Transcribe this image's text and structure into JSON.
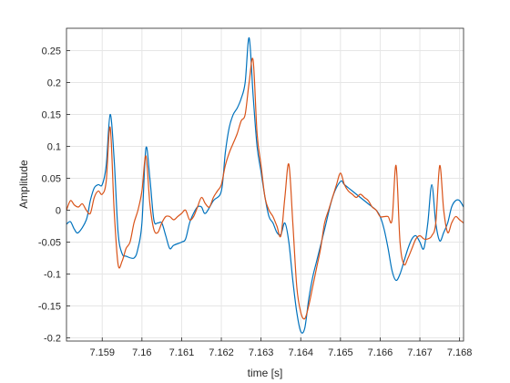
{
  "chart_data": {
    "type": "line",
    "title": "",
    "xlabel": "time [s]",
    "ylabel": "Amplitude",
    "xlim": [
      7.1581,
      7.1681
    ],
    "ylim": [
      -0.205,
      0.285
    ],
    "xticks": [
      7.159,
      7.16,
      7.161,
      7.162,
      7.163,
      7.164,
      7.165,
      7.166,
      7.167,
      7.168
    ],
    "xtick_labels": [
      "7.159",
      "7.16",
      "7.161",
      "7.162",
      "7.163",
      "7.164",
      "7.165",
      "7.166",
      "7.167",
      "7.168"
    ],
    "yticks": [
      -0.2,
      -0.15,
      -0.1,
      -0.05,
      0,
      0.05,
      0.1,
      0.15,
      0.2,
      0.25
    ],
    "ytick_labels": [
      "-0.2",
      "-0.15",
      "-0.1",
      "-0.05",
      "0",
      "0.05",
      "0.1",
      "0.15",
      "0.2",
      "0.25"
    ],
    "grid": true,
    "legend": "none",
    "series": [
      {
        "color": "#0072BD",
        "x": [
          7.1581,
          7.1582,
          7.1583,
          7.1584,
          7.1586,
          7.1587,
          7.1588,
          7.1589,
          7.159,
          7.1591,
          7.1592,
          7.1593,
          7.1594,
          7.1595,
          7.1596,
          7.1598,
          7.1599,
          7.16,
          7.1601,
          7.1602,
          7.1603,
          7.1604,
          7.1605,
          7.1606,
          7.1607,
          7.1608,
          7.161,
          7.1611,
          7.1612,
          7.1613,
          7.1614,
          7.1615,
          7.1616,
          7.1618,
          7.162,
          7.1621,
          7.1622,
          7.1623,
          7.1624,
          7.1625,
          7.1626,
          7.1627,
          7.1628,
          7.1629,
          7.163,
          7.1631,
          7.1632,
          7.1633,
          7.1634,
          7.1635,
          7.1636,
          7.1637,
          7.1638,
          7.1639,
          7.164,
          7.1641,
          7.1642,
          7.1643,
          7.1644,
          7.1646,
          7.1648,
          7.165,
          7.1651,
          7.1653,
          7.1655,
          7.1657,
          7.1659,
          7.166,
          7.1661,
          7.1662,
          7.1663,
          7.1664,
          7.1665,
          7.1666,
          7.1667,
          7.1668,
          7.1669,
          7.167,
          7.1671,
          7.1672,
          7.1673,
          7.1674,
          7.1675,
          7.1676,
          7.1677,
          7.1678,
          7.1679,
          7.168,
          7.1681
        ],
        "y": [
          -0.022,
          -0.018,
          -0.03,
          -0.035,
          -0.015,
          0.015,
          0.035,
          0.04,
          0.04,
          0.07,
          0.15,
          0.08,
          -0.035,
          -0.068,
          -0.072,
          -0.075,
          -0.06,
          -0.02,
          0.097,
          0.05,
          -0.015,
          -0.02,
          -0.02,
          -0.04,
          -0.06,
          -0.055,
          -0.05,
          -0.045,
          -0.02,
          -0.005,
          0.005,
          0.005,
          -0.005,
          0.015,
          0.03,
          0.09,
          0.13,
          0.15,
          0.16,
          0.175,
          0.2,
          0.27,
          0.18,
          0.1,
          0.06,
          0.02,
          -0.01,
          -0.02,
          -0.035,
          -0.038,
          -0.02,
          -0.05,
          -0.11,
          -0.16,
          -0.19,
          -0.185,
          -0.14,
          -0.105,
          -0.08,
          -0.03,
          0.02,
          0.045,
          0.04,
          0.03,
          0.02,
          0.01,
          0.0,
          -0.01,
          -0.03,
          -0.06,
          -0.095,
          -0.11,
          -0.1,
          -0.08,
          -0.06,
          -0.045,
          -0.04,
          -0.05,
          -0.06,
          -0.02,
          0.04,
          -0.02,
          -0.048,
          -0.035,
          -0.02,
          0.005,
          0.015,
          0.015,
          0.005
        ]
      },
      {
        "color": "#D95319",
        "x": [
          7.1581,
          7.1582,
          7.1583,
          7.1584,
          7.1585,
          7.1586,
          7.1587,
          7.1588,
          7.1589,
          7.159,
          7.1591,
          7.1592,
          7.1593,
          7.1594,
          7.1595,
          7.1596,
          7.1597,
          7.1598,
          7.1599,
          7.16,
          7.1601,
          7.1602,
          7.1603,
          7.1604,
          7.1605,
          7.1606,
          7.1607,
          7.1608,
          7.1609,
          7.161,
          7.1611,
          7.1612,
          7.1613,
          7.1614,
          7.1615,
          7.1616,
          7.1617,
          7.1618,
          7.1619,
          7.162,
          7.1621,
          7.1622,
          7.1623,
          7.1624,
          7.1625,
          7.1626,
          7.1627,
          7.1628,
          7.1629,
          7.163,
          7.1631,
          7.1632,
          7.1633,
          7.1634,
          7.1635,
          7.1636,
          7.1637,
          7.1638,
          7.1639,
          7.164,
          7.1641,
          7.1642,
          7.1643,
          7.1644,
          7.1645,
          7.1646,
          7.1647,
          7.1648,
          7.1649,
          7.165,
          7.1651,
          7.1652,
          7.1653,
          7.1654,
          7.1655,
          7.1656,
          7.1657,
          7.1658,
          7.1659,
          7.166,
          7.1661,
          7.1662,
          7.1663,
          7.1664,
          7.1665,
          7.1666,
          7.1667,
          7.1668,
          7.1669,
          7.167,
          7.1671,
          7.1672,
          7.1673,
          7.1674,
          7.1675,
          7.1676,
          7.1677,
          7.1678,
          7.1679,
          7.168,
          7.1681
        ],
        "y": [
          0.0,
          0.015,
          0.008,
          0.005,
          0.01,
          0.0,
          -0.005,
          0.02,
          0.03,
          0.025,
          0.045,
          0.13,
          0.0,
          -0.085,
          -0.08,
          -0.06,
          -0.05,
          -0.02,
          0.0,
          0.03,
          0.085,
          0.01,
          -0.03,
          -0.035,
          -0.02,
          -0.01,
          -0.01,
          -0.015,
          -0.01,
          -0.005,
          0.0,
          -0.015,
          -0.01,
          0.005,
          0.02,
          0.01,
          0.005,
          0.02,
          0.03,
          0.04,
          0.07,
          0.09,
          0.105,
          0.12,
          0.14,
          0.15,
          0.2,
          0.235,
          0.12,
          0.07,
          0.02,
          0.0,
          -0.01,
          -0.025,
          -0.04,
          0.02,
          0.072,
          -0.02,
          -0.12,
          -0.16,
          -0.17,
          -0.15,
          -0.12,
          -0.09,
          -0.06,
          -0.02,
          0.0,
          0.02,
          0.04,
          0.058,
          0.04,
          0.03,
          0.025,
          0.02,
          0.025,
          0.02,
          0.015,
          0.005,
          0.0,
          -0.01,
          -0.01,
          -0.01,
          -0.015,
          0.07,
          -0.05,
          -0.085,
          -0.075,
          -0.06,
          -0.045,
          -0.04,
          -0.045,
          -0.045,
          -0.04,
          -0.02,
          0.07,
          0.0,
          -0.035,
          -0.02,
          -0.01,
          -0.015,
          -0.02
        ]
      }
    ]
  }
}
